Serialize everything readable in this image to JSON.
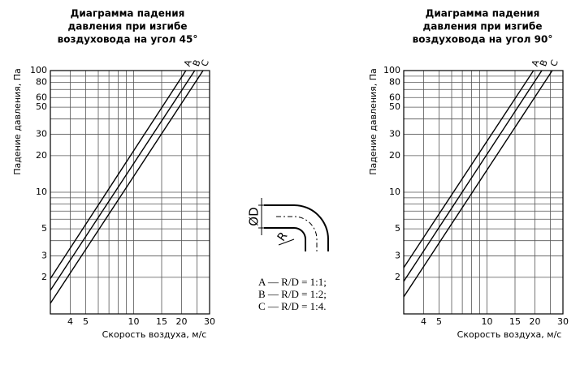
{
  "chart_data": [
    {
      "type": "line",
      "title": [
        "Диаграмма падения",
        "давления при изгибе",
        "воздуховода на угол 45°"
      ],
      "x_label": "Скорость воздуха, м/с",
      "y_label": "Падение давления, Па",
      "log_x": true,
      "log_y": true,
      "grid": true,
      "xlim": [
        3,
        30
      ],
      "ylim": [
        1,
        100
      ],
      "xticks": [
        4,
        5,
        10,
        15,
        20,
        30
      ],
      "yticks": [
        2,
        3,
        5,
        10,
        20,
        30,
        50,
        60,
        80,
        100
      ],
      "xgrid": [
        4,
        5,
        6,
        7,
        8,
        9,
        10,
        15,
        20,
        25,
        30
      ],
      "ygrid": [
        2,
        3,
        4,
        5,
        6,
        7,
        8,
        9,
        10,
        20,
        30,
        40,
        50,
        60,
        70,
        80,
        90,
        100
      ],
      "series": [
        {
          "name": "A",
          "color": "#000000",
          "x": [
            3,
            21.3
          ],
          "values": [
            1.95,
            100
          ]
        },
        {
          "name": "B",
          "color": "#000000",
          "x": [
            3,
            24.2
          ],
          "values": [
            1.56,
            100
          ]
        },
        {
          "name": "C",
          "color": "#000000",
          "x": [
            3,
            27.3
          ],
          "values": [
            1.22,
            100
          ]
        }
      ]
    },
    {
      "type": "line",
      "title": [
        "Диаграмма падения",
        "давления при изгибе",
        "воздуховода на угол 90°"
      ],
      "x_label": "Скорость воздуха, м/с",
      "y_label": "Падение давления, Па",
      "log_x": true,
      "log_y": true,
      "grid": true,
      "xlim": [
        3,
        30
      ],
      "ylim": [
        1,
        100
      ],
      "xticks": [
        4,
        5,
        10,
        15,
        20,
        30
      ],
      "yticks": [
        2,
        3,
        5,
        10,
        20,
        30,
        50,
        60,
        80,
        100
      ],
      "xgrid": [
        4,
        5,
        6,
        7,
        8,
        9,
        10,
        15,
        20,
        25,
        30
      ],
      "ygrid": [
        2,
        3,
        4,
        5,
        6,
        7,
        8,
        9,
        10,
        20,
        30,
        40,
        50,
        60,
        70,
        80,
        90,
        100
      ],
      "series": [
        {
          "name": "A",
          "color": "#000000",
          "x": [
            3,
            19.6
          ],
          "values": [
            2.4,
            100
          ]
        },
        {
          "name": "B",
          "color": "#000000",
          "x": [
            3,
            22.1
          ],
          "values": [
            1.85,
            100
          ]
        },
        {
          "name": "C",
          "color": "#000000",
          "x": [
            3,
            25.7
          ],
          "values": [
            1.38,
            100
          ]
        }
      ]
    }
  ],
  "bend_diagram": {
    "diameter_label": "ØD",
    "radius_label": "R",
    "notes": [
      "A — R/D = 1:1;",
      "B — R/D = 1:2;",
      "C — R/D = 1:4."
    ]
  }
}
